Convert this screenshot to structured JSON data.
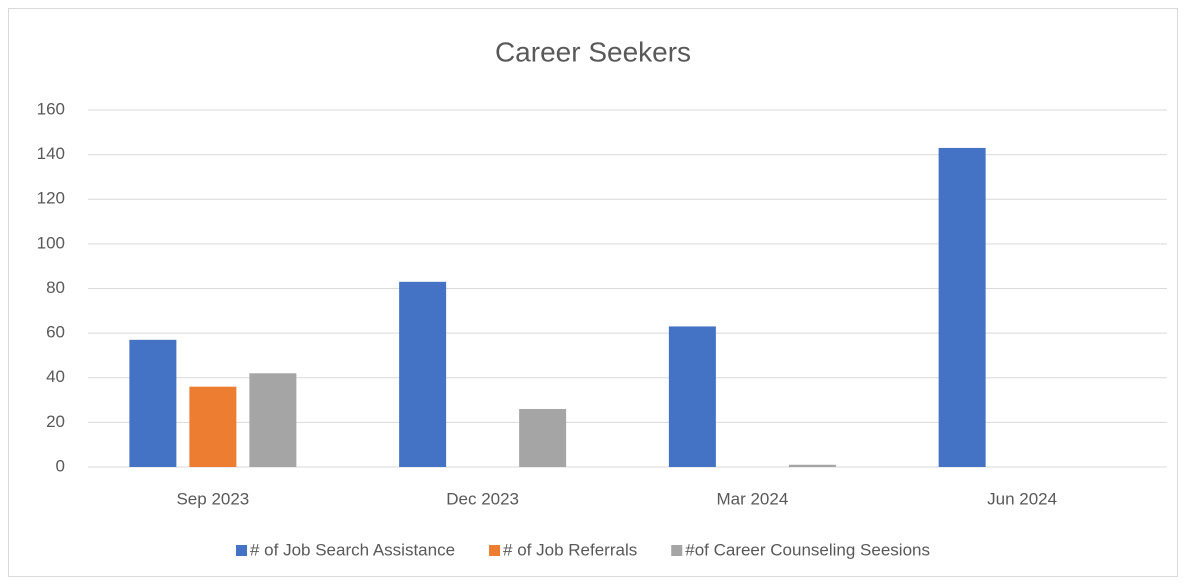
{
  "chart_data": {
    "type": "bar",
    "title": "Career Seekers",
    "categories": [
      "Sep 2023",
      "Dec 2023",
      "Mar 2024",
      "Jun 2024"
    ],
    "series": [
      {
        "name": "# of Job Search Assistance",
        "color": "#4472c4",
        "values": [
          57,
          83,
          63,
          143
        ]
      },
      {
        "name": "# of Job Referrals",
        "color": "#ed7d31",
        "values": [
          36,
          0,
          0,
          0
        ]
      },
      {
        "name": "#of Career Counseling Seesions",
        "color": "#a5a5a5",
        "values": [
          42,
          26,
          1,
          0
        ]
      }
    ],
    "ylim": [
      0,
      160
    ],
    "yticks": [
      0,
      20,
      40,
      60,
      80,
      100,
      120,
      140,
      160
    ],
    "grid": true,
    "legend": "bottom"
  }
}
